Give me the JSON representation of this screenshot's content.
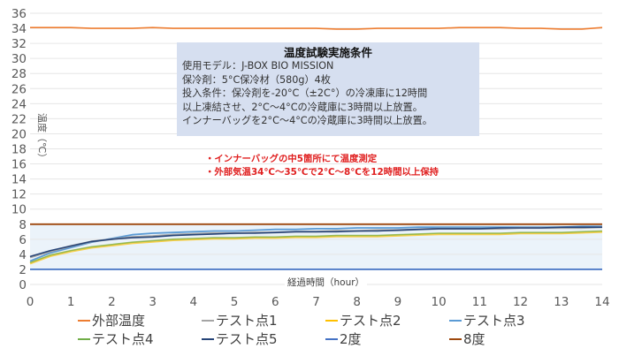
{
  "chart_data": {
    "type": "line",
    "title": "",
    "xlabel": "経過時間（hour）",
    "ylabel": "温度（℃）",
    "xlim": [
      0,
      14
    ],
    "ylim": [
      0,
      36
    ],
    "grid": true,
    "legend_position": "bottom",
    "x_ticks": [
      "0",
      "1",
      "2",
      "3",
      "4",
      "5",
      "6",
      "7",
      "8",
      "9",
      "10",
      "11",
      "12",
      "13",
      "14"
    ],
    "y_ticks": [
      "0",
      "2",
      "4",
      "6",
      "8",
      "10",
      "12",
      "14",
      "16",
      "18",
      "20",
      "22",
      "24",
      "26",
      "28",
      "30",
      "32",
      "34",
      "36"
    ],
    "x": [
      0,
      0.5,
      1,
      1.5,
      2,
      2.5,
      3,
      3.5,
      4,
      4.5,
      5,
      5.5,
      6,
      6.5,
      7,
      7.5,
      8,
      8.5,
      9,
      9.5,
      10,
      10.5,
      11,
      11.5,
      12,
      12.5,
      13,
      13.5,
      14
    ],
    "series": [
      {
        "name": "外部温度",
        "color": "#ed7d31",
        "values": [
          34.1,
          34.1,
          34.1,
          34.0,
          34.0,
          34.0,
          34.1,
          34.0,
          34.0,
          34.0,
          34.0,
          34.0,
          34.0,
          34.0,
          34.0,
          33.9,
          33.9,
          34.0,
          34.0,
          34.0,
          34.0,
          34.1,
          34.1,
          34.1,
          34.0,
          34.0,
          33.9,
          33.9,
          34.1
        ]
      },
      {
        "name": "テスト点1",
        "color": "#a5a5a5",
        "values": [
          3.6,
          4.4,
          5.1,
          5.7,
          6.0,
          6.3,
          6.4,
          6.6,
          6.7,
          6.8,
          6.8,
          6.9,
          6.9,
          7.0,
          7.0,
          7.1,
          7.1,
          7.2,
          7.2,
          7.3,
          7.4,
          7.4,
          7.4,
          7.4,
          7.5,
          7.5,
          7.5,
          7.5,
          7.6
        ]
      },
      {
        "name": "テスト点2",
        "color": "#ffc000",
        "values": [
          2.8,
          3.8,
          4.4,
          4.9,
          5.2,
          5.5,
          5.7,
          5.9,
          6.0,
          6.1,
          6.1,
          6.2,
          6.2,
          6.3,
          6.3,
          6.4,
          6.4,
          6.4,
          6.5,
          6.6,
          6.7,
          6.7,
          6.7,
          6.7,
          6.8,
          6.8,
          6.8,
          6.9,
          7.0
        ]
      },
      {
        "name": "テスト点3",
        "color": "#5b9bd5",
        "values": [
          3.1,
          4.2,
          4.9,
          5.6,
          6.1,
          6.6,
          6.8,
          6.9,
          7.0,
          7.1,
          7.1,
          7.2,
          7.3,
          7.3,
          7.4,
          7.4,
          7.5,
          7.5,
          7.5,
          7.6,
          7.6,
          7.6,
          7.6,
          7.6,
          7.6,
          7.6,
          7.6,
          7.7,
          7.7
        ]
      },
      {
        "name": "テスト点4",
        "color": "#70ad47",
        "values": [
          2.9,
          3.9,
          4.5,
          5.0,
          5.3,
          5.6,
          5.8,
          6.0,
          6.1,
          6.2,
          6.2,
          6.3,
          6.3,
          6.4,
          6.4,
          6.5,
          6.5,
          6.5,
          6.6,
          6.7,
          6.8,
          6.8,
          6.8,
          6.8,
          6.9,
          6.9,
          6.9,
          7.0,
          7.1
        ]
      },
      {
        "name": "テスト点5",
        "color": "#264478",
        "values": [
          3.7,
          4.5,
          5.1,
          5.7,
          6.0,
          6.2,
          6.3,
          6.5,
          6.6,
          6.7,
          6.8,
          6.8,
          6.9,
          7.0,
          7.0,
          7.0,
          7.1,
          7.1,
          7.2,
          7.3,
          7.4,
          7.4,
          7.4,
          7.5,
          7.5,
          7.5,
          7.6,
          7.6,
          7.6
        ]
      },
      {
        "name": "2度",
        "color": "#4472c4",
        "values": [
          2,
          2,
          2,
          2,
          2,
          2,
          2,
          2,
          2,
          2,
          2,
          2,
          2,
          2,
          2,
          2,
          2,
          2,
          2,
          2,
          2,
          2,
          2,
          2,
          2,
          2,
          2,
          2,
          2
        ]
      },
      {
        "name": "8度",
        "color": "#9e480e",
        "values": [
          8,
          8,
          8,
          8,
          8,
          8,
          8,
          8,
          8,
          8,
          8,
          8,
          8,
          8,
          8,
          8,
          8,
          8,
          8,
          8,
          8,
          8,
          8,
          8,
          8,
          8,
          8,
          8,
          8
        ]
      }
    ],
    "shaded_band": {
      "from": 2,
      "to": 8,
      "color": "#deebf7"
    },
    "annotations": [
      "温度試験実施条件",
      "使用モデル：J-BOX BIO MISSION",
      "保冷剤：5°C保冷材（580g）4枚",
      "投入条件：保冷剤を-20°C（±2C°）の冷凍庫に12時間以上凍結させ、2°C～4°Cの冷蔵庫に3時間以上放置。インナーバッグを2°C～4°Cの冷蔵庫に3時間以上放置。",
      "・インナーバッグの中5箇所にて温度測定",
      "・外部気温34℃～35℃で2℃～8℃を12時間以上保持"
    ]
  },
  "conditions": {
    "title": "温度試験実施条件",
    "lines": [
      "使用モデル：J-BOX BIO MISSION",
      "保冷剤：5°C保冷材（580g）4枚",
      "投入条件：保冷剤を-20°C（±2C°）の冷凍庫に12時間",
      "以上凍結させ、2°C～4°Cの冷蔵庫に3時間以上放置。",
      "インナーバッグを2°C～4°Cの冷蔵庫に3時間以上放置。"
    ]
  },
  "notes": [
    "・インナーバッグの中5箇所にて温度測定",
    "・外部気温34℃～35℃で2℃～8℃を12時間以上保持"
  ],
  "axis": {
    "xlabel": "経過時間（hour）",
    "ylabel": "温度（℃）"
  },
  "legend": [
    {
      "label": "外部温度",
      "color": "#ed7d31"
    },
    {
      "label": "テスト点1",
      "color": "#a5a5a5"
    },
    {
      "label": "テスト点2",
      "color": "#ffc000"
    },
    {
      "label": "テスト点3",
      "color": "#5b9bd5"
    },
    {
      "label": "テスト点4",
      "color": "#70ad47"
    },
    {
      "label": "テスト点5",
      "color": "#264478"
    },
    {
      "label": "2度",
      "color": "#4472c4"
    },
    {
      "label": "8度",
      "color": "#9e480e"
    }
  ]
}
